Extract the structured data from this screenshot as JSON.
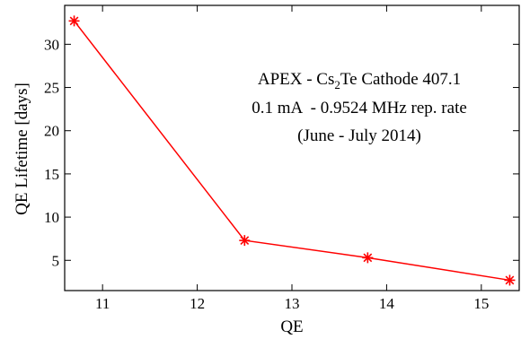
{
  "chart_data": {
    "type": "line",
    "xlabel": "QE",
    "ylabel": "QE Lifetime [days]",
    "xlim": [
      10.6,
      15.4
    ],
    "ylim": [
      1.5,
      34.5
    ],
    "xticks": [
      11,
      12,
      13,
      14,
      15
    ],
    "yticks": [
      5,
      10,
      15,
      20,
      25,
      30
    ],
    "grid": false,
    "series": [
      {
        "marker": "asterisk",
        "color": "#ff0000",
        "x": [
          10.7,
          12.5,
          13.8,
          15.3
        ],
        "y": [
          32.7,
          7.3,
          5.3,
          2.7
        ]
      }
    ],
    "annotation": {
      "line1_prefix": "APEX - Cs",
      "line1_sub": "2",
      "line1_suffix": "Te Cathode 407.1",
      "line2": "0.1 mA  - 0.9524 MHz rep. rate",
      "line3": "(June - July 2014)"
    }
  }
}
